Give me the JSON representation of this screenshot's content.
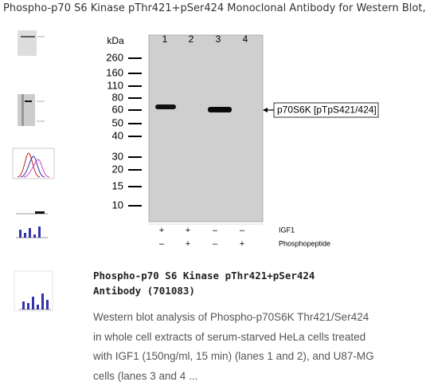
{
  "page_title": "Phospho-p70 S6 Kinase pThr421+pSer424 Monoclonal Antibody for Western Blot,",
  "figure": {
    "unit": "kDa",
    "lanes": [
      "1",
      "2",
      "3",
      "4"
    ],
    "markers": [
      "260",
      "160",
      "110",
      "80",
      "60",
      "50",
      "40",
      "30",
      "20",
      "15",
      "10"
    ],
    "band_label": "p70S6K [pTpS421/424]",
    "treatments": [
      {
        "label": "IGF1",
        "signs": [
          "+",
          "+",
          "–",
          "–"
        ]
      },
      {
        "label": "Phosphopeptide",
        "signs": [
          "–",
          "+",
          "–",
          "+"
        ]
      }
    ]
  },
  "caption": {
    "heading": "Phospho-p70 S6 Kinase pThr421+pSer424 Antibody (701083)",
    "lines": [
      "Western blot analysis of Phospho-p70S6K Thr421/Ser424",
      "in whole cell extracts of serum-starved HeLa cells treated",
      "with IGF1 (150ng/ml, 15 min) (lanes 1 and 2), and U87-MG",
      "cells (lanes 3 and 4 ..."
    ]
  }
}
